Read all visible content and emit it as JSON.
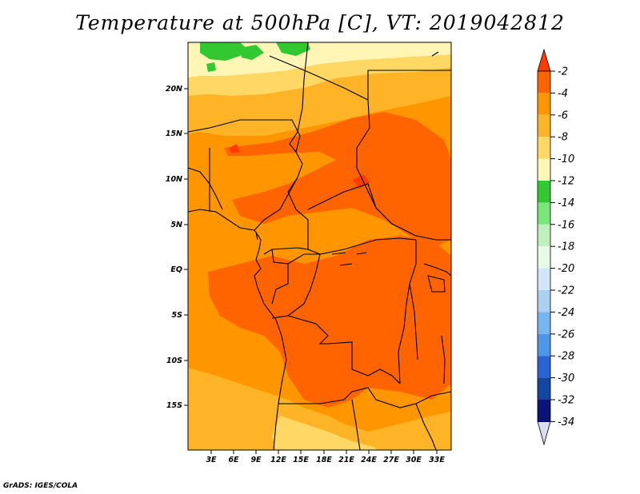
{
  "title": "Temperature at 500hPa [C], VT: 2019042812",
  "credit": "GrADS: IGES/COLA",
  "map": {
    "variable": "Temperature",
    "level": "500hPa",
    "units": "C",
    "valid_time": "2019042812",
    "lat_labels": [
      "20N",
      "15N",
      "10N",
      "5N",
      "EQ",
      "5S",
      "10S",
      "15S"
    ],
    "lon_labels": [
      "3E",
      "6E",
      "9E",
      "12E",
      "15E",
      "18E",
      "21E",
      "24E",
      "27E",
      "30E",
      "33E"
    ]
  },
  "colorbar": {
    "labels": [
      "-2",
      "-4",
      "-6",
      "-8",
      "-10",
      "-12",
      "-14",
      "-16",
      "-18",
      "-20",
      "-22",
      "-24",
      "-26",
      "-28",
      "-30",
      "-32",
      "-34"
    ],
    "colors": [
      "#ff3c00",
      "#ff6400",
      "#ff9600",
      "#ffb428",
      "#ffd764",
      "#fff5b4",
      "#32c832",
      "#78e678",
      "#bef0be",
      "#e6fae6",
      "#d2e6fa",
      "#aad2f0",
      "#78b4f0",
      "#5096e6",
      "#2864d2",
      "#1446a0",
      "#0a1478",
      "#dcdcf0"
    ]
  }
}
